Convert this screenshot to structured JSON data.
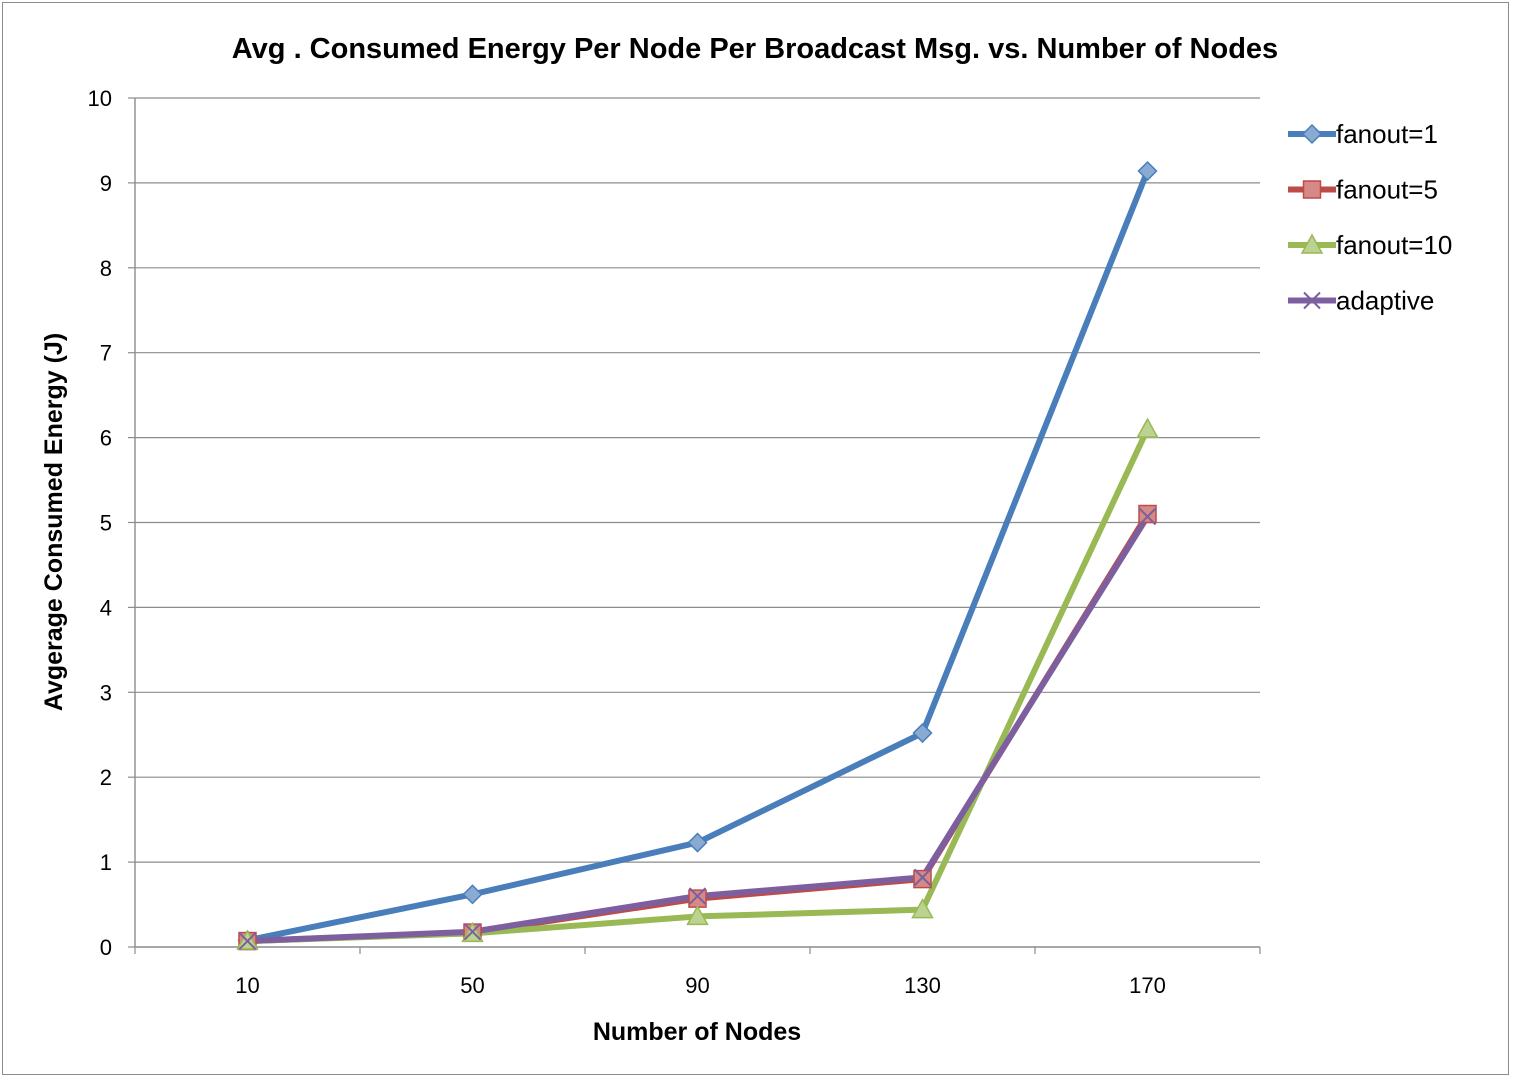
{
  "chart_data": {
    "type": "line",
    "title": "Avg . Consumed Energy Per Node Per Broadcast Msg. vs. Number of Nodes",
    "xlabel": "Number of Nodes",
    "ylabel": "Avgerage Consumed Energy (J)",
    "categories": [
      "10",
      "50",
      "90",
      "130",
      "170"
    ],
    "ylim": [
      0,
      10
    ],
    "yticks": [
      "0",
      "1",
      "2",
      "3",
      "4",
      "5",
      "6",
      "7",
      "8",
      "9",
      "10"
    ],
    "grid": "horizontal",
    "legend": "right",
    "series": [
      {
        "name": "fanout=1",
        "values": [
          0.08,
          0.62,
          1.23,
          2.52,
          9.14
        ],
        "color": "#4a7ebb",
        "marker": "diamond"
      },
      {
        "name": "fanout=5",
        "values": [
          0.07,
          0.17,
          0.57,
          0.8,
          5.1
        ],
        "color": "#be4b48",
        "marker": "square"
      },
      {
        "name": "fanout=10",
        "values": [
          0.07,
          0.16,
          0.36,
          0.44,
          6.1
        ],
        "color": "#98b954",
        "marker": "triangle"
      },
      {
        "name": "adaptive",
        "values": [
          0.07,
          0.18,
          0.6,
          0.82,
          5.07
        ],
        "color": "#7d5fa0",
        "marker": "x"
      }
    ]
  }
}
